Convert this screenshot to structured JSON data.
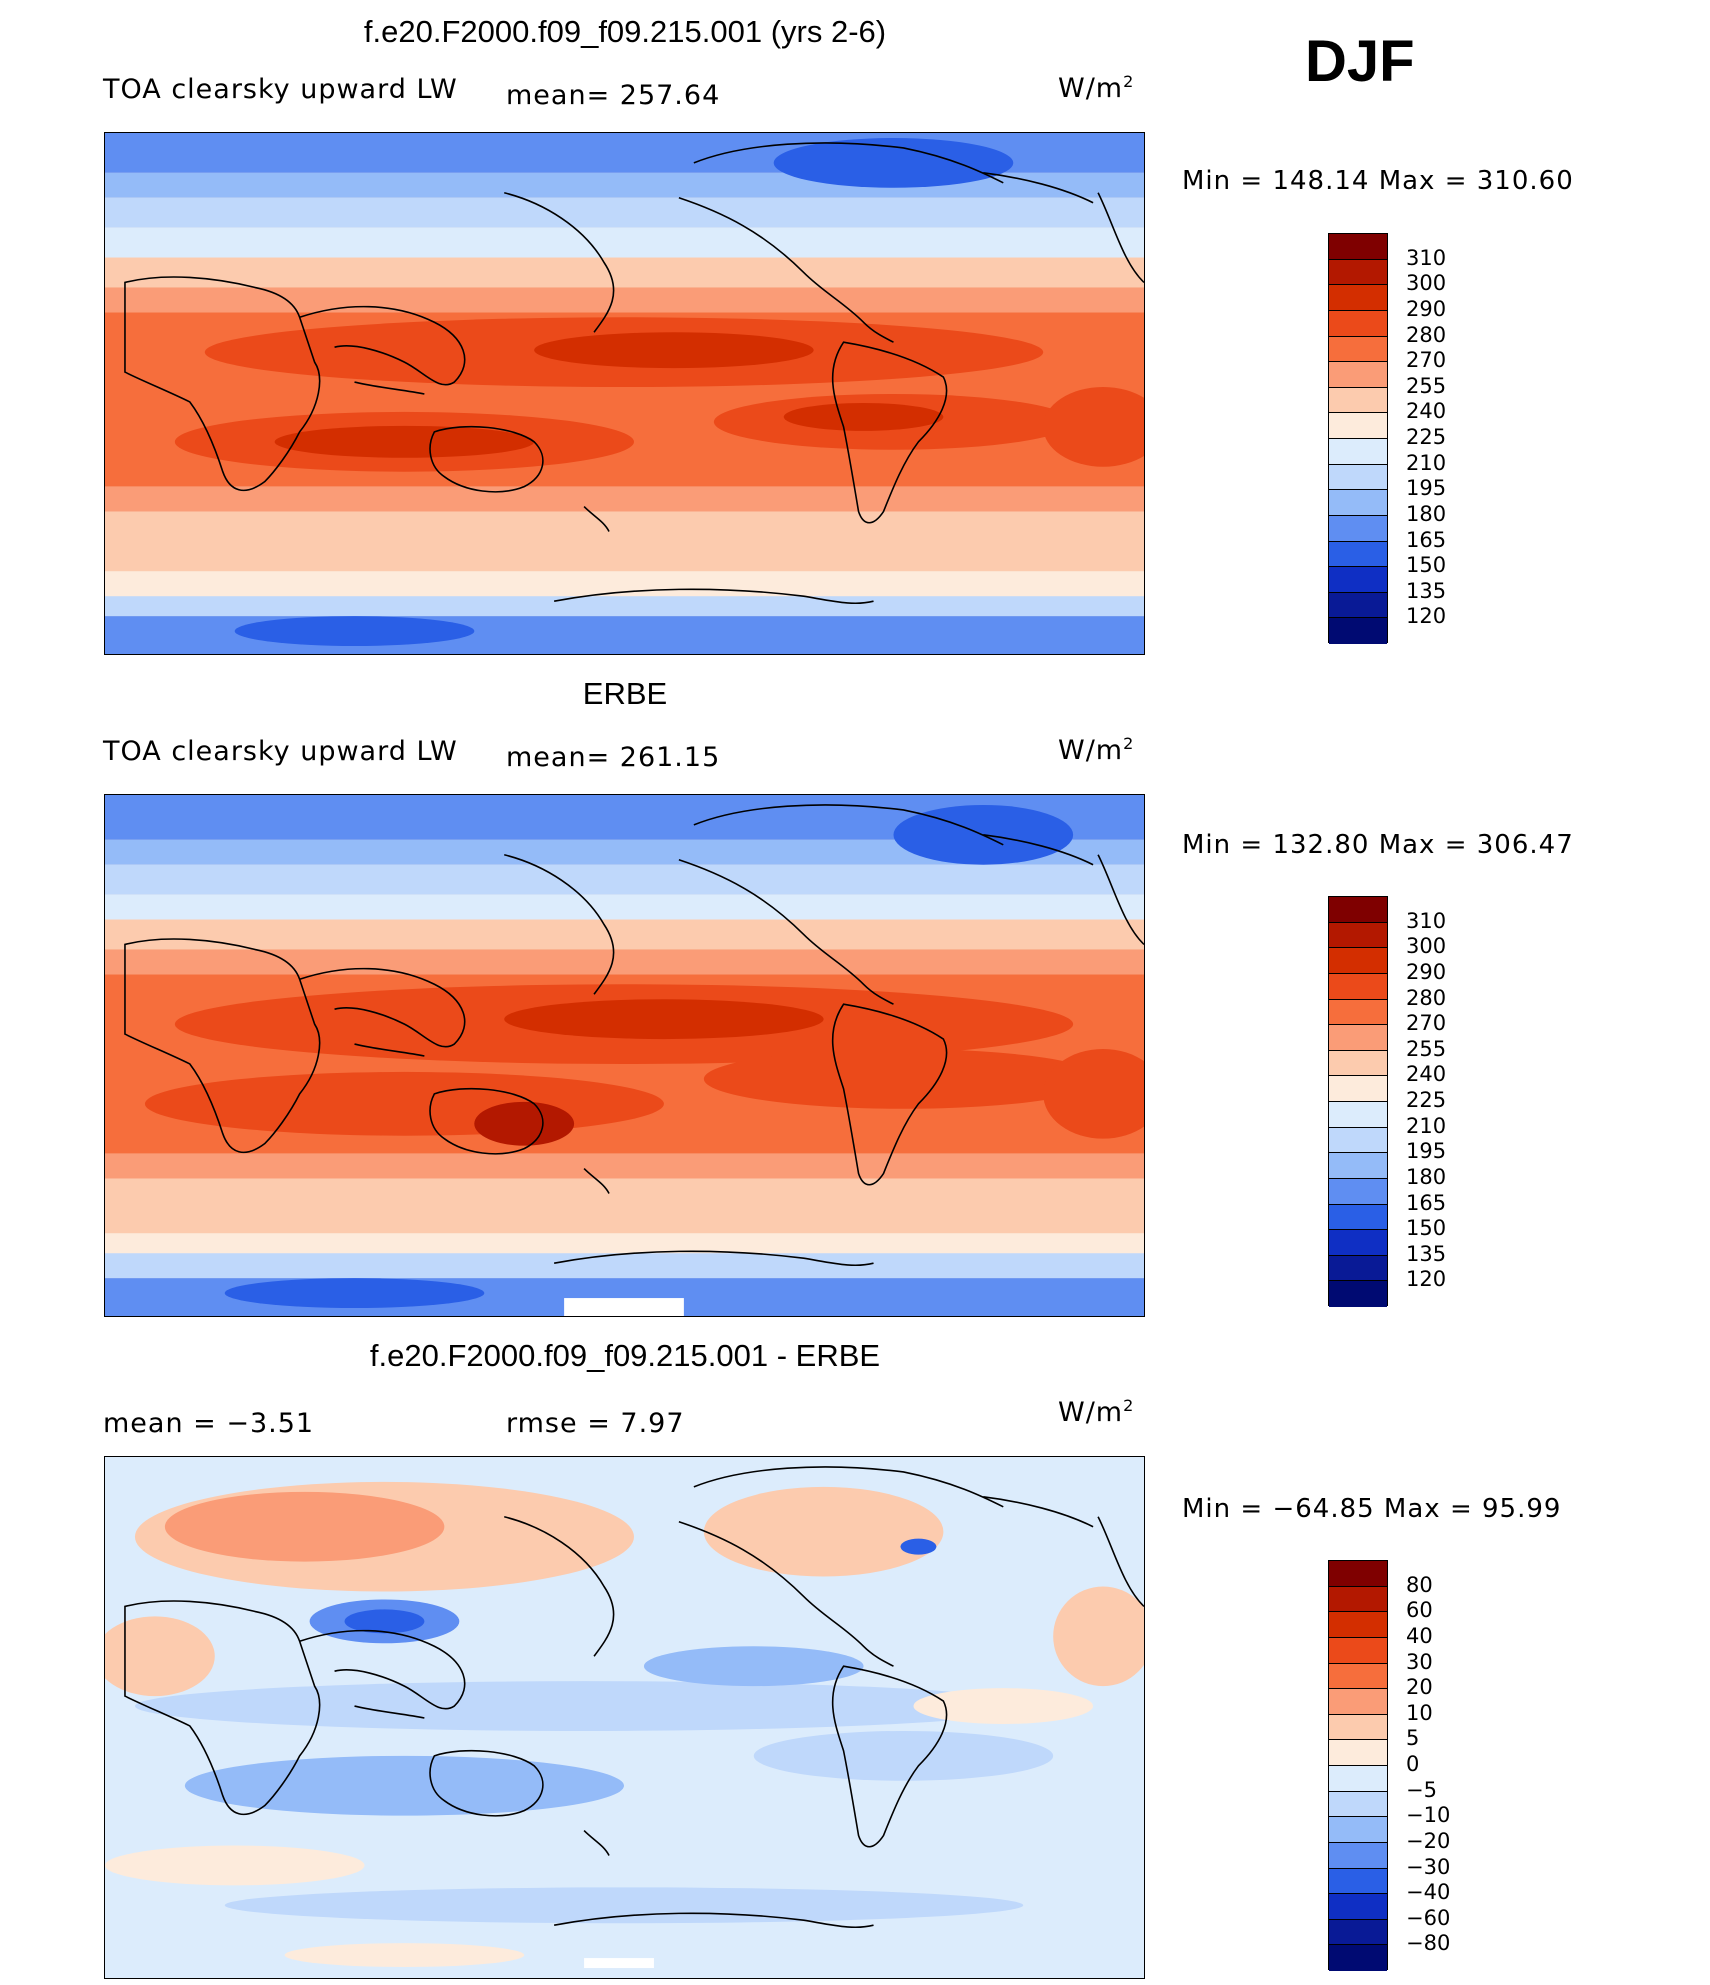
{
  "season": "DJF",
  "units": "W/m",
  "units_sup": "2",
  "panels": [
    {
      "title": "f.e20.F2000.f09_f09.215.001 (yrs 2-6)",
      "left_label": "TOA clearsky upward LW",
      "mean_label": "mean= 257.64",
      "minmax": "Min  =  148.14  Max  =  310.60",
      "levels": [
        "310",
        "300",
        "290",
        "280",
        "270",
        "255",
        "240",
        "225",
        "210",
        "195",
        "180",
        "165",
        "150",
        "135",
        "120"
      ]
    },
    {
      "title": "ERBE",
      "left_label": "TOA clearsky upward LW",
      "mean_label": "mean= 261.15",
      "minmax": "Min  =  132.80  Max  =  306.47",
      "levels": [
        "310",
        "300",
        "290",
        "280",
        "270",
        "255",
        "240",
        "225",
        "210",
        "195",
        "180",
        "165",
        "150",
        "135",
        "120"
      ]
    },
    {
      "title": "f.e20.F2000.f09_f09.215.001 - ERBE",
      "left_label": "mean  =    −3.51",
      "mean_label": "rmse  =     7.97",
      "minmax": "Min  =  −64.85  Max  =    95.99",
      "levels": [
        "80",
        "60",
        "40",
        "30",
        "20",
        "10",
        "5",
        "0",
        "−5",
        "−10",
        "−20",
        "−30",
        "−40",
        "−60",
        "−80"
      ]
    }
  ],
  "colors": {
    "abs_scale": [
      "#7f0000",
      "#b31800",
      "#d32e00",
      "#eb4a1a",
      "#f66e3c",
      "#fa9c77",
      "#fccbae",
      "#fdebdc",
      "#dcecfc",
      "#bfd8fb",
      "#94bbf8",
      "#5f8ef2",
      "#2a5fe6",
      "#0f2fc4",
      "#091a96",
      "#000a72"
    ],
    "diff_scale": [
      "#7f0000",
      "#b31800",
      "#d32e00",
      "#eb4a1a",
      "#f66e3c",
      "#fa9c77",
      "#fccbae",
      "#fdebdc",
      "#dcecfc",
      "#bfd8fb",
      "#94bbf8",
      "#5f8ef2",
      "#2a5fe6",
      "#0f2fc4",
      "#091a96",
      "#000a72"
    ]
  }
}
